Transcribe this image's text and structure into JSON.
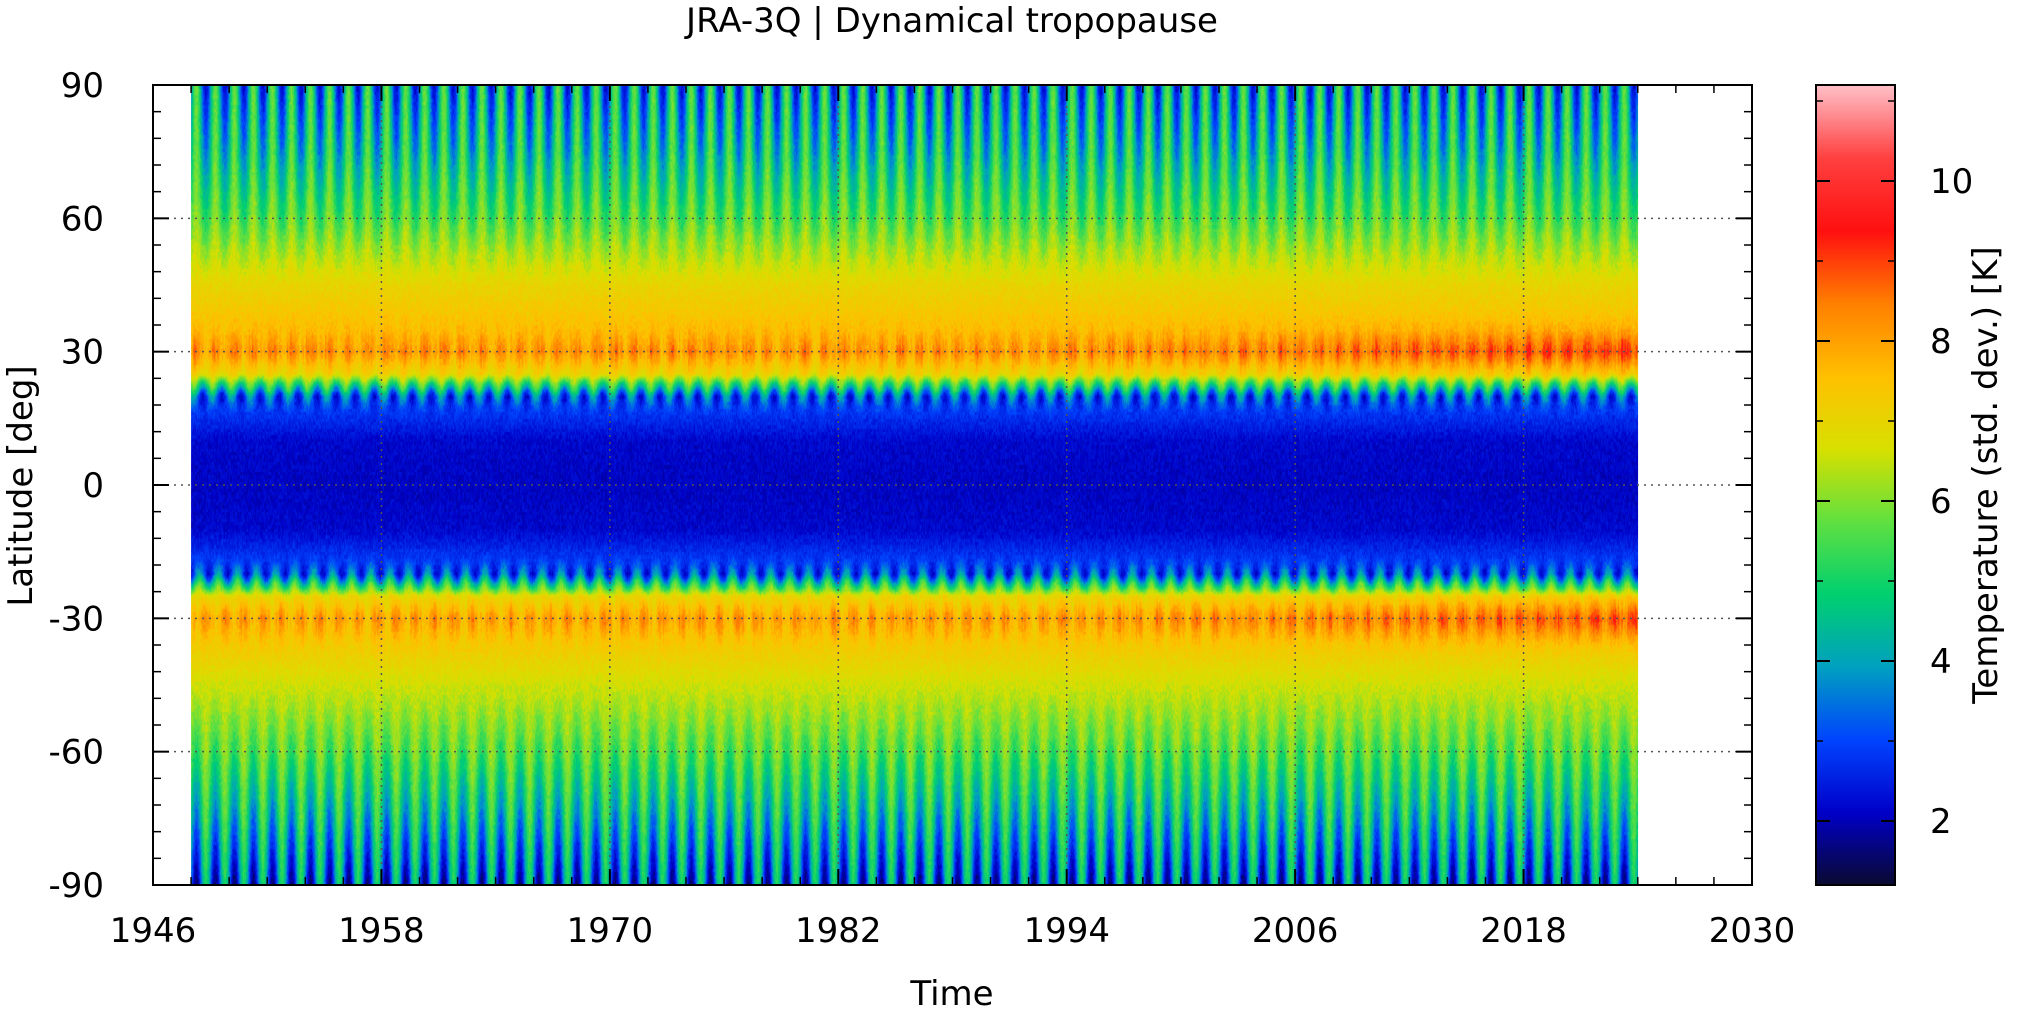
{
  "chart_data": {
    "type": "heatmap",
    "title": "JRA-3Q | Dynamical tropopause",
    "xlabel": "Time",
    "ylabel": "Latitude [deg]",
    "colorbar_label": "Temperature (std. dev.) [K]",
    "xlim": [
      1946,
      2030
    ],
    "ylim": [
      -90,
      90
    ],
    "data_x_range": [
      1948,
      2024
    ],
    "xticks": [
      1946,
      1958,
      1970,
      1982,
      1994,
      2006,
      2018,
      2030
    ],
    "xtick_labels": [
      "1946",
      "1958",
      "1970",
      "1982",
      "1994",
      "2006",
      "2018",
      "2030"
    ],
    "yticks": [
      90,
      60,
      30,
      0,
      -30,
      -60,
      -90
    ],
    "ytick_labels": [
      "90",
      "60",
      "30",
      "0",
      "-30",
      "-60",
      "-90"
    ],
    "color_range": [
      1.2,
      11.2
    ],
    "colorbar_ticks": [
      10,
      8,
      6,
      4,
      2
    ],
    "colorbar_tick_labels": [
      "10",
      "8",
      "6",
      "4",
      "2"
    ],
    "grid": true,
    "latitudes": [
      -90,
      -75,
      -60,
      -45,
      -35,
      -30,
      -25,
      -20,
      -10,
      0,
      10,
      20,
      25,
      30,
      35,
      45,
      60,
      75,
      90
    ],
    "mean_std_dev_profile": [
      3.3,
      4.5,
      5.6,
      6.6,
      7.4,
      8.0,
      7.0,
      3.2,
      2.2,
      2.1,
      2.2,
      3.2,
      7.0,
      8.2,
      7.6,
      7.0,
      5.6,
      4.6,
      4.0
    ],
    "trend_note_values": {
      "annual_cycle_amplitude": 1.8,
      "late_period_increase": 0.8
    },
    "colormap": [
      "#0a0a30",
      "#0000c8",
      "#0044ff",
      "#00a0c0",
      "#00d070",
      "#60e040",
      "#d8e000",
      "#ffc000",
      "#ff8000",
      "#ff1010",
      "#ff4040",
      "#ffc0c8"
    ]
  }
}
